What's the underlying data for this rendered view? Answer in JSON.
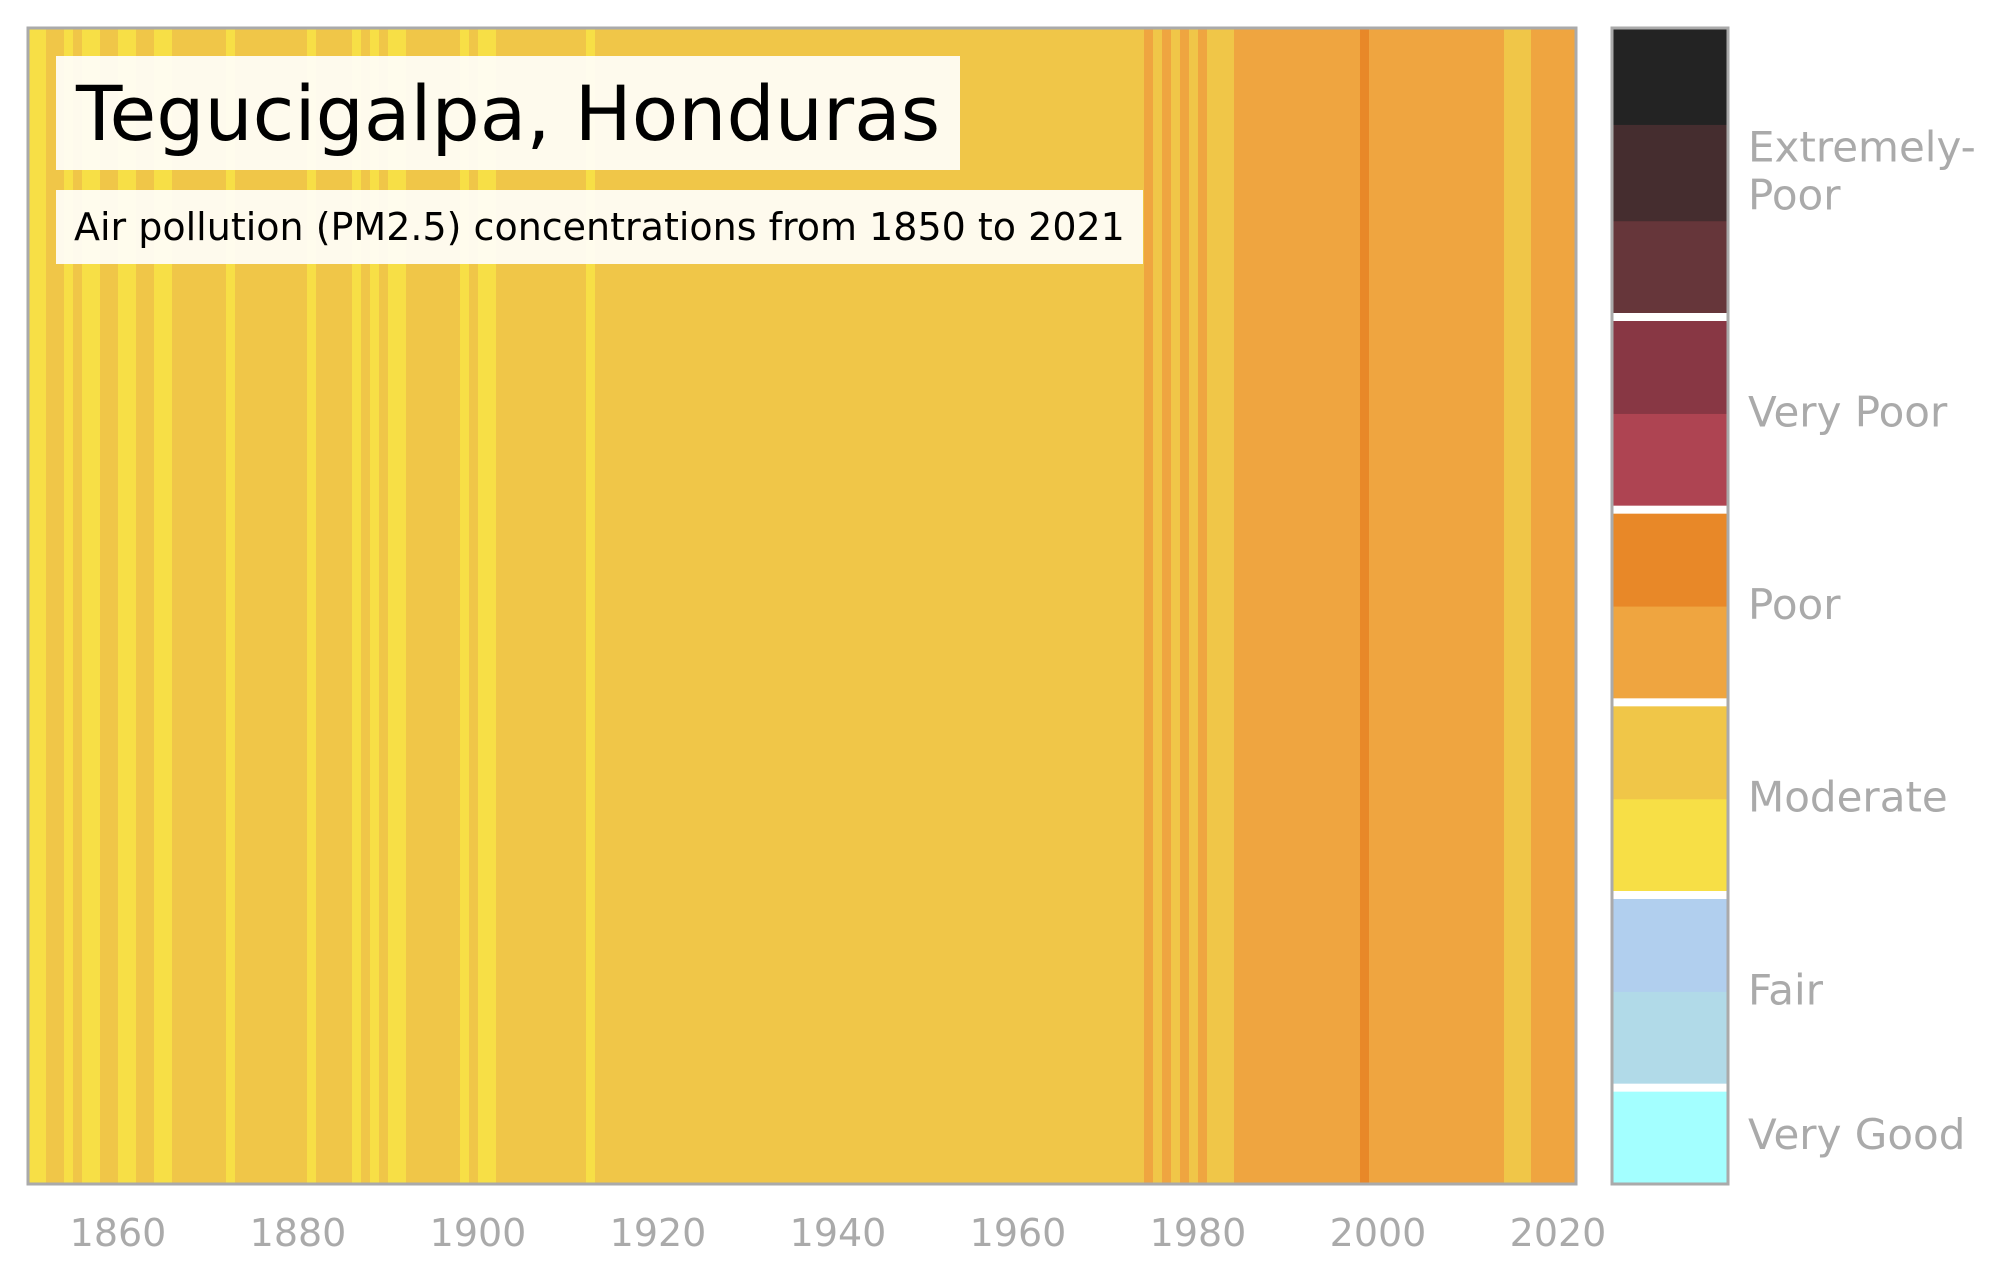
{
  "title": "Tegucigalpa, Honduras",
  "subtitle": "Air pollution (PM2.5) concentrations from 1850 to 2021",
  "chart_data": {
    "type": "heatmap",
    "title": "Tegucigalpa, Honduras",
    "subtitle": "Air pollution (PM2.5) concentrations from 1850 to 2021",
    "xlabel": "",
    "ylabel": "",
    "xlim": [
      1850,
      2022
    ],
    "x_ticks": [
      "1860",
      "1880",
      "1900",
      "1920",
      "1940",
      "1960",
      "1980",
      "2000",
      "2020"
    ],
    "grid": false,
    "legend": "right",
    "class_colors": {
      "moderate_low": "#F7DF46",
      "moderate_high": "#F0C648",
      "poor_low": "#EFA540",
      "poor_high": "#E88828"
    },
    "stripe_segments": [
      {
        "start": 1850,
        "end": 1852,
        "class": "moderate_low"
      },
      {
        "start": 1852,
        "end": 1854,
        "class": "moderate_high"
      },
      {
        "start": 1854,
        "end": 1855,
        "class": "moderate_low"
      },
      {
        "start": 1855,
        "end": 1856,
        "class": "moderate_high"
      },
      {
        "start": 1856,
        "end": 1858,
        "class": "moderate_low"
      },
      {
        "start": 1858,
        "end": 1860,
        "class": "moderate_high"
      },
      {
        "start": 1860,
        "end": 1862,
        "class": "moderate_low"
      },
      {
        "start": 1862,
        "end": 1864,
        "class": "moderate_high"
      },
      {
        "start": 1864,
        "end": 1866,
        "class": "moderate_low"
      },
      {
        "start": 1866,
        "end": 1872,
        "class": "moderate_high"
      },
      {
        "start": 1872,
        "end": 1873,
        "class": "moderate_low"
      },
      {
        "start": 1873,
        "end": 1881,
        "class": "moderate_high"
      },
      {
        "start": 1881,
        "end": 1882,
        "class": "moderate_low"
      },
      {
        "start": 1882,
        "end": 1886,
        "class": "moderate_high"
      },
      {
        "start": 1886,
        "end": 1887,
        "class": "moderate_low"
      },
      {
        "start": 1887,
        "end": 1888,
        "class": "moderate_high"
      },
      {
        "start": 1888,
        "end": 1889,
        "class": "moderate_low"
      },
      {
        "start": 1889,
        "end": 1890,
        "class": "moderate_high"
      },
      {
        "start": 1890,
        "end": 1892,
        "class": "moderate_low"
      },
      {
        "start": 1892,
        "end": 1898,
        "class": "moderate_high"
      },
      {
        "start": 1898,
        "end": 1899,
        "class": "moderate_low"
      },
      {
        "start": 1899,
        "end": 1900,
        "class": "moderate_high"
      },
      {
        "start": 1900,
        "end": 1902,
        "class": "moderate_low"
      },
      {
        "start": 1902,
        "end": 1912,
        "class": "moderate_high"
      },
      {
        "start": 1912,
        "end": 1913,
        "class": "moderate_low"
      },
      {
        "start": 1913,
        "end": 1974,
        "class": "moderate_high"
      },
      {
        "start": 1974,
        "end": 1975,
        "class": "poor_low"
      },
      {
        "start": 1975,
        "end": 1976,
        "class": "moderate_high"
      },
      {
        "start": 1976,
        "end": 1977,
        "class": "poor_low"
      },
      {
        "start": 1977,
        "end": 1978,
        "class": "moderate_high"
      },
      {
        "start": 1978,
        "end": 1979,
        "class": "poor_low"
      },
      {
        "start": 1979,
        "end": 1980,
        "class": "moderate_high"
      },
      {
        "start": 1980,
        "end": 1981,
        "class": "poor_low"
      },
      {
        "start": 1981,
        "end": 1984,
        "class": "moderate_high"
      },
      {
        "start": 1984,
        "end": 1998,
        "class": "poor_low"
      },
      {
        "start": 1998,
        "end": 1999,
        "class": "poor_high"
      },
      {
        "start": 1999,
        "end": 2014,
        "class": "poor_low"
      },
      {
        "start": 2014,
        "end": 2017,
        "class": "moderate_high"
      },
      {
        "start": 2017,
        "end": 2022,
        "class": "poor_low"
      }
    ],
    "colorbar": {
      "cells": [
        "#A3FFFF",
        "#B1DAE8",
        "#B1CFEE",
        "#F7DF46",
        "#F0C648",
        "#EFA540",
        "#E88828",
        "#AE4452",
        "#883744",
        "#66363A",
        "#452D2F",
        "#232323"
      ],
      "categories": [
        {
          "label": "Very Good",
          "cells": 1
        },
        {
          "label": "Fair",
          "cells": 2
        },
        {
          "label": "Moderate",
          "cells": 2
        },
        {
          "label": "Poor",
          "cells": 2
        },
        {
          "label": "Very Poor",
          "cells": 2
        },
        {
          "label": "Extremely-\nPoor",
          "cells": 3
        }
      ]
    }
  }
}
